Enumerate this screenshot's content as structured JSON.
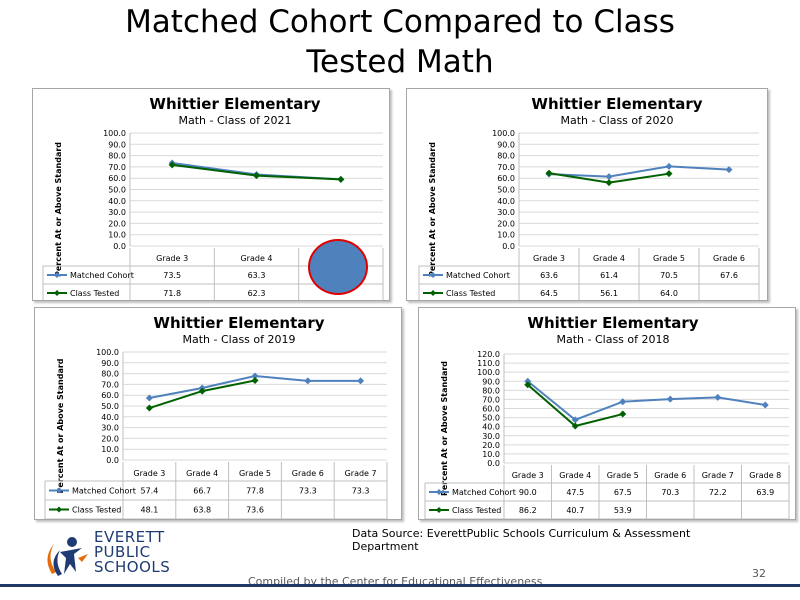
{
  "slide": {
    "title_line1": "Matched Cohort Compared to Class",
    "title_line2": "Tested Math",
    "source_line1": "Data Source: EverettPublic Schools Curriculum & Assessment",
    "source_line2": "Department",
    "compiled": "Compiled by the Center for Educational Effectiveness",
    "page_number": "32",
    "logo_line1": "EVERETT",
    "logo_line2": "PUBLIC",
    "logo_line3": "SCHOOLS"
  },
  "colors": {
    "matched": "#4f81bd",
    "tested": "#006100",
    "highlight_fill": "#4f81bd",
    "highlight_border": "#e00000"
  },
  "chart_data": [
    {
      "type": "line",
      "title": "Whittier Elementary",
      "subtitle": "Math - Class of 2021",
      "ylabel": "Percent At or Above Standard",
      "ylim": [
        0,
        100
      ],
      "yticks": [
        "0.0",
        "10.0",
        "20.0",
        "30.0",
        "40.0",
        "50.0",
        "60.0",
        "70.0",
        "80.0",
        "90.0",
        "100.0"
      ],
      "categories": [
        "Grade 3",
        "Grade 4",
        ""
      ],
      "series": [
        {
          "name": "Matched Cohort",
          "values": [
            73.5,
            63.3,
            59.0
          ],
          "labels": [
            "73.5",
            "63.3",
            ""
          ]
        },
        {
          "name": "Class Tested",
          "values": [
            71.8,
            62.3,
            59.0
          ],
          "labels": [
            "71.8",
            "62.3",
            ""
          ]
        }
      ],
      "grid": true,
      "legend": "table-left"
    },
    {
      "type": "line",
      "title": "Whittier Elementary",
      "subtitle": "Math - Class of 2020",
      "ylabel": "Percent At or Above Standard",
      "ylim": [
        0,
        100
      ],
      "yticks": [
        "0.0",
        "10.0",
        "20.0",
        "30.0",
        "40.0",
        "50.0",
        "60.0",
        "70.0",
        "80.0",
        "90.0",
        "100.0"
      ],
      "categories": [
        "Grade 3",
        "Grade 4",
        "Grade 5",
        "Grade 6"
      ],
      "series": [
        {
          "name": "Matched Cohort",
          "values": [
            63.6,
            61.4,
            70.5,
            67.6
          ],
          "labels": [
            "63.6",
            "61.4",
            "70.5",
            "67.6"
          ]
        },
        {
          "name": "Class Tested",
          "values": [
            64.5,
            56.1,
            64.0,
            null
          ],
          "labels": [
            "64.5",
            "56.1",
            "64.0",
            ""
          ]
        }
      ],
      "grid": true,
      "legend": "table-left"
    },
    {
      "type": "line",
      "title": "Whittier Elementary",
      "subtitle": "Math - Class of 2019",
      "ylabel": "Percent At or Above Standard",
      "ylim": [
        0,
        100
      ],
      "yticks": [
        "0.0",
        "10.0",
        "20.0",
        "30.0",
        "40.0",
        "50.0",
        "60.0",
        "70.0",
        "80.0",
        "90.0",
        "100.0"
      ],
      "categories": [
        "Grade 3",
        "Grade 4",
        "Grade 5",
        "Grade 6",
        "Grade 7"
      ],
      "series": [
        {
          "name": "Matched Cohort",
          "values": [
            57.4,
            66.7,
            77.8,
            73.3,
            73.3
          ],
          "labels": [
            "57.4",
            "66.7",
            "77.8",
            "73.3",
            "73.3"
          ]
        },
        {
          "name": "Class Tested",
          "values": [
            48.1,
            63.8,
            73.6,
            null,
            null
          ],
          "labels": [
            "48.1",
            "63.8",
            "73.6",
            "",
            ""
          ]
        }
      ],
      "grid": true,
      "legend": "table-left"
    },
    {
      "type": "line",
      "title": "Whittier Elementary",
      "subtitle": "Math - Class of 2018",
      "ylabel": "Percent At or Above Standard",
      "ylim": [
        0,
        120
      ],
      "yticks": [
        "0.0",
        "10.0",
        "20.0",
        "30.0",
        "40.0",
        "50.0",
        "60.0",
        "70.0",
        "80.0",
        "90.0",
        "100.0",
        "110.0",
        "120.0"
      ],
      "categories": [
        "Grade 3",
        "Grade 4",
        "Grade 5",
        "Grade 6",
        "Grade 7",
        "Grade 8"
      ],
      "series": [
        {
          "name": "Matched Cohort",
          "values": [
            90.0,
            47.5,
            67.5,
            70.3,
            72.2,
            63.9
          ],
          "labels": [
            "90.0",
            "47.5",
            "67.5",
            "70.3",
            "72.2",
            "63.9"
          ]
        },
        {
          "name": "Class Tested",
          "values": [
            86.2,
            40.7,
            53.9,
            null,
            null,
            null
          ],
          "labels": [
            "86.2",
            "40.7",
            "53.9",
            "",
            "",
            ""
          ]
        }
      ],
      "grid": true,
      "legend": "table-left"
    }
  ]
}
